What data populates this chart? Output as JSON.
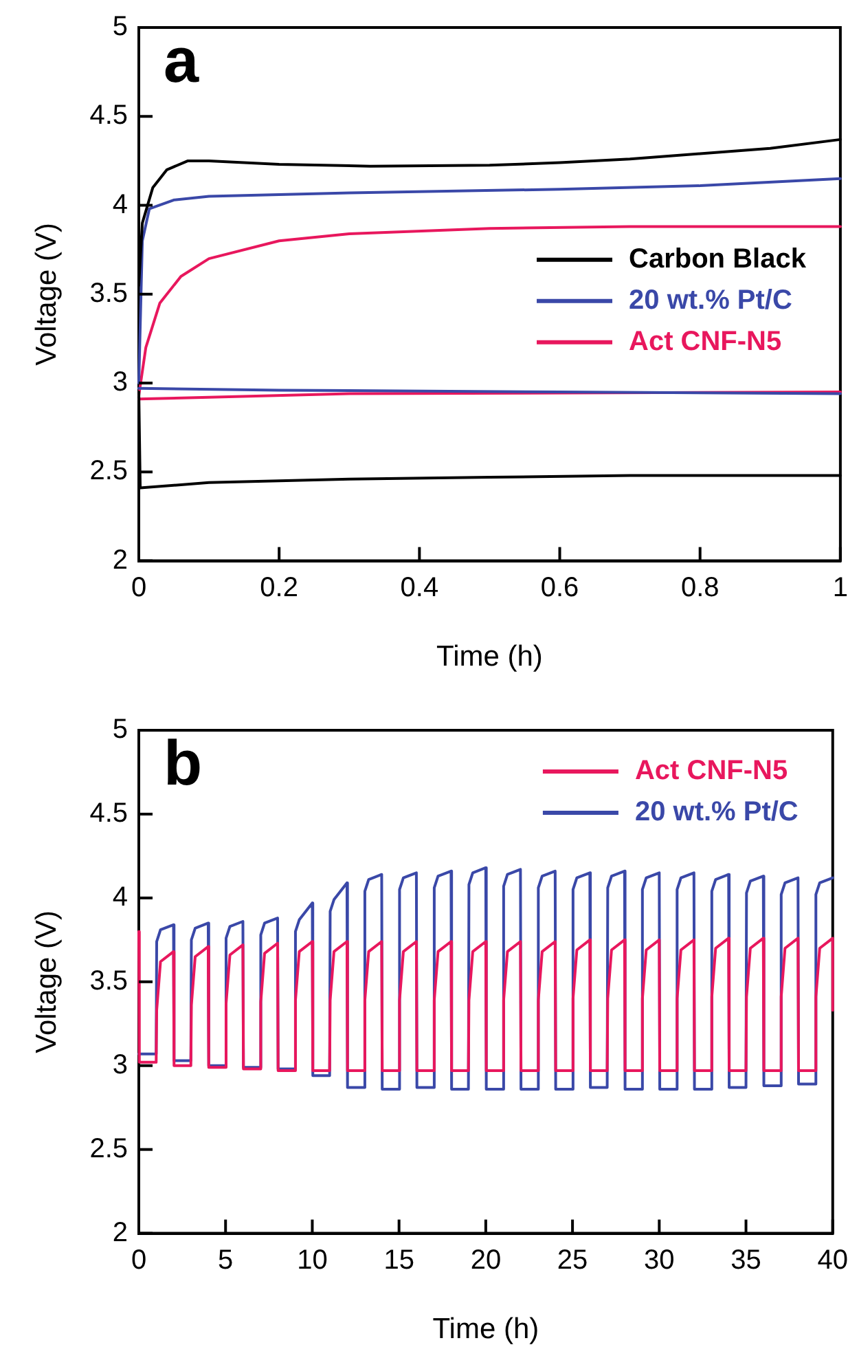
{
  "chart_data": [
    {
      "type": "line",
      "xlabel": "Time (h)",
      "ylabel": "Voltage (V)",
      "annotations": [
        "a"
      ],
      "xlim": [
        0,
        1
      ],
      "xticks": [
        0,
        0.2,
        0.4,
        0.6,
        0.8,
        1
      ],
      "ylim": [
        2,
        5
      ],
      "yticks": [
        2,
        2.5,
        3,
        3.5,
        4,
        4.5,
        5
      ],
      "grid": false,
      "legend": "center right",
      "marker": "none",
      "line_style": "solid",
      "series": [
        {
          "name": "Carbon Black",
          "color": "#000000",
          "x": [
            0,
            0.005,
            0.02,
            0.04,
            0.07,
            0.1,
            0.2,
            0.33,
            0.5,
            0.6,
            0.7,
            0.8,
            0.9,
            1,
            null,
            0,
            0.002,
            0.1,
            0.3,
            0.5,
            0.7,
            1
          ],
          "values": [
            3.55,
            3.9,
            4.1,
            4.2,
            4.25,
            4.25,
            4.23,
            4.22,
            4.225,
            4.24,
            4.26,
            4.29,
            4.32,
            4.37,
            null,
            2.95,
            2.41,
            2.44,
            2.46,
            2.47,
            2.48,
            2.48
          ]
        },
        {
          "name": "20 wt.% Pt/C",
          "color": "#3a48a8",
          "x": [
            0,
            0.005,
            0.015,
            0.05,
            0.1,
            0.3,
            0.6,
            0.8,
            1,
            null,
            0,
            0.2,
            0.6,
            1
          ],
          "values": [
            3.0,
            3.8,
            3.98,
            4.03,
            4.05,
            4.07,
            4.09,
            4.11,
            4.15,
            null,
            2.97,
            2.96,
            2.95,
            2.94
          ]
        },
        {
          "name": "Act CNF-N5",
          "color": "#e8175d",
          "x": [
            0,
            0.01,
            0.03,
            0.06,
            0.1,
            0.2,
            0.3,
            0.5,
            0.7,
            1,
            null,
            0,
            0.1,
            0.3,
            1
          ],
          "values": [
            2.93,
            3.2,
            3.45,
            3.6,
            3.7,
            3.8,
            3.84,
            3.87,
            3.88,
            3.88,
            null,
            2.91,
            2.92,
            2.94,
            2.95
          ]
        }
      ]
    },
    {
      "type": "line",
      "xlabel": "Time (h)",
      "ylabel": "Voltage (V)",
      "annotations": [
        "b"
      ],
      "xlim": [
        0,
        40
      ],
      "xticks": [
        0,
        5,
        10,
        15,
        20,
        25,
        30,
        35,
        40
      ],
      "ylim": [
        2,
        5
      ],
      "yticks": [
        2,
        2.5,
        3,
        3.5,
        4,
        4.5,
        5
      ],
      "grid": false,
      "legend": "top right",
      "marker": "none",
      "line_style": "solid",
      "x": [
        0,
        0.03,
        1,
        1.03,
        1.25,
        2,
        2.03,
        3,
        3.03,
        3.25,
        4,
        4.03,
        5,
        5.03,
        5.25,
        6,
        6.03,
        7,
        7.03,
        7.25,
        8,
        8.03,
        9,
        9.03,
        9.25,
        10,
        10.03,
        11,
        11.03,
        11.25,
        12,
        12.03,
        13,
        13.03,
        13.25,
        14,
        14.03,
        15,
        15.03,
        15.25,
        16,
        16.03,
        17,
        17.03,
        17.25,
        18,
        18.03,
        19,
        19.03,
        19.25,
        20,
        20.03,
        21,
        21.03,
        21.25,
        22,
        22.03,
        23,
        23.03,
        23.25,
        24,
        24.03,
        25,
        25.03,
        25.25,
        26,
        26.03,
        27,
        27.03,
        27.25,
        28,
        28.03,
        29,
        29.03,
        29.25,
        30,
        30.03,
        31,
        31.03,
        31.25,
        32,
        32.03,
        33,
        33.03,
        33.25,
        34,
        34.03,
        35,
        35.03,
        35.25,
        36,
        36.03,
        37,
        37.03,
        37.25,
        38,
        38.03,
        39,
        39.03,
        39.25,
        40,
        40
      ],
      "series": [
        {
          "name": "Act CNF-N5",
          "color": "#e8175d",
          "values": [
            3.8,
            3.02,
            3.02,
            3.33,
            3.62,
            3.68,
            3.0,
            3.0,
            3.36,
            3.65,
            3.71,
            2.99,
            2.99,
            3.37,
            3.66,
            3.72,
            2.98,
            2.98,
            3.38,
            3.67,
            3.73,
            2.97,
            2.97,
            3.39,
            3.68,
            3.74,
            2.97,
            2.97,
            3.39,
            3.68,
            3.74,
            2.97,
            2.97,
            3.39,
            3.68,
            3.74,
            2.97,
            2.97,
            3.39,
            3.68,
            3.74,
            2.97,
            2.97,
            3.39,
            3.68,
            3.74,
            2.97,
            2.97,
            3.39,
            3.68,
            3.74,
            2.97,
            2.97,
            3.39,
            3.68,
            3.74,
            2.97,
            2.97,
            3.39,
            3.68,
            3.74,
            2.97,
            2.97,
            3.4,
            3.69,
            3.75,
            2.97,
            2.97,
            3.4,
            3.69,
            3.75,
            2.97,
            2.97,
            3.4,
            3.69,
            3.75,
            2.97,
            2.97,
            3.4,
            3.69,
            3.75,
            2.97,
            2.97,
            3.41,
            3.7,
            3.76,
            2.97,
            2.97,
            3.41,
            3.7,
            3.76,
            2.97,
            2.97,
            3.41,
            3.7,
            3.76,
            2.97,
            2.97,
            3.41,
            3.7,
            3.76,
            3.33
          ]
        },
        {
          "name": "20 wt.% Pt/C",
          "color": "#3a48a8",
          "values": [
            3.07,
            3.07,
            3.07,
            3.74,
            3.81,
            3.84,
            3.03,
            3.03,
            3.75,
            3.82,
            3.85,
            3.0,
            3.0,
            3.76,
            3.83,
            3.86,
            2.99,
            2.99,
            3.78,
            3.85,
            3.88,
            2.98,
            2.98,
            3.8,
            3.87,
            3.97,
            2.94,
            2.94,
            3.92,
            3.99,
            4.09,
            2.87,
            2.87,
            4.04,
            4.11,
            4.14,
            2.86,
            2.86,
            4.05,
            4.12,
            4.15,
            2.87,
            2.87,
            4.06,
            4.13,
            4.16,
            2.86,
            2.86,
            4.08,
            4.15,
            4.18,
            2.86,
            2.86,
            4.07,
            4.14,
            4.17,
            2.86,
            2.86,
            4.06,
            4.13,
            4.16,
            2.86,
            2.86,
            4.05,
            4.12,
            4.15,
            2.87,
            2.87,
            4.06,
            4.13,
            4.16,
            2.86,
            2.86,
            4.05,
            4.12,
            4.15,
            2.86,
            2.86,
            4.05,
            4.12,
            4.15,
            2.86,
            2.86,
            4.04,
            4.11,
            4.14,
            2.87,
            2.87,
            4.03,
            4.1,
            4.13,
            2.88,
            2.88,
            4.02,
            4.09,
            4.12,
            2.89,
            2.89,
            4.02,
            4.09,
            4.12,
            null
          ]
        }
      ]
    }
  ]
}
